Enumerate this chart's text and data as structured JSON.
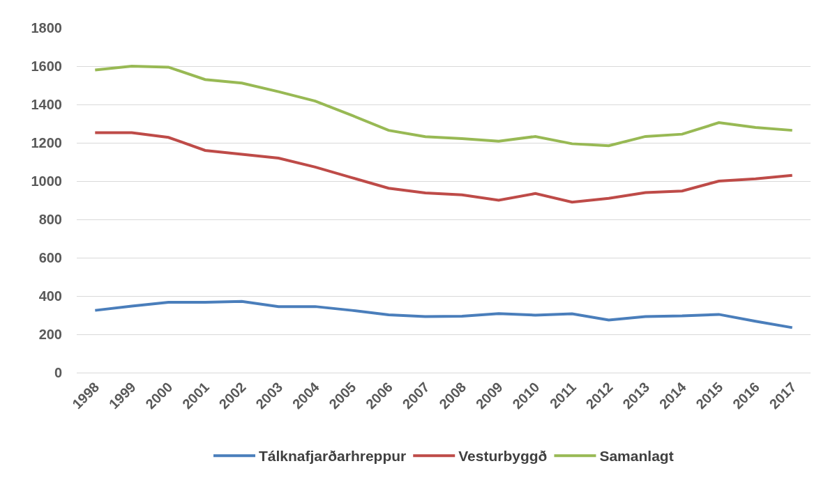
{
  "chart_data": {
    "type": "line",
    "categories": [
      "1998",
      "1999",
      "2000",
      "2001",
      "2002",
      "2003",
      "2004",
      "2005",
      "2006",
      "2007",
      "2008",
      "2009",
      "2010",
      "2011",
      "2012",
      "2013",
      "2014",
      "2015",
      "2016",
      "2017"
    ],
    "series": [
      {
        "name": "Tálknafjarðarhreppur",
        "color": "#4a7ebb",
        "values": [
          325,
          347,
          367,
          367,
          372,
          345,
          345,
          325,
          302,
          293,
          295,
          308,
          300,
          307,
          275,
          293,
          296,
          304,
          268,
          235
        ]
      },
      {
        "name": "Vesturbyggð",
        "color": "#be4b48",
        "values": [
          1253,
          1253,
          1228,
          1160,
          1140,
          1120,
          1073,
          1018,
          963,
          938,
          928,
          900,
          935,
          890,
          910,
          940,
          948,
          1000,
          1012,
          1030
        ]
      },
      {
        "name": "Samanlagt",
        "color": "#98b954",
        "values": [
          1580,
          1600,
          1595,
          1530,
          1512,
          1467,
          1418,
          1343,
          1265,
          1232,
          1222,
          1208,
          1233,
          1195,
          1185,
          1233,
          1245,
          1305,
          1280,
          1265
        ]
      }
    ],
    "ylim": [
      0,
      1800
    ],
    "yticks": [
      0,
      200,
      400,
      600,
      800,
      1000,
      1200,
      1400,
      1600,
      1800
    ],
    "grid": "y",
    "legend": "bottom",
    "marker": "none",
    "line_style": "solid"
  }
}
